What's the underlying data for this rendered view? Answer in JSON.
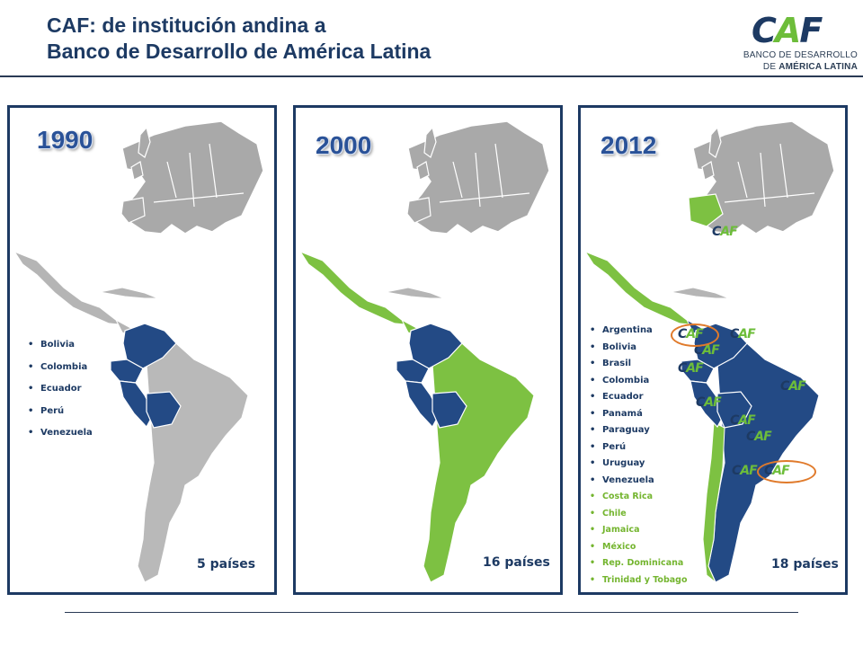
{
  "header": {
    "title_line1": "CAF: de institución andina a",
    "title_line2": "Banco de Desarrollo de América Latina"
  },
  "logo": {
    "mark_c": "C",
    "mark_a": "A",
    "mark_f": "F",
    "sub_line1": "BANCO DE DESARROLLO",
    "sub_line2_prefix": "DE ",
    "sub_line2_bold": "AMÉRICA LATINA"
  },
  "colors": {
    "navy": "#1d3a63",
    "member_blue": "#234a85",
    "green": "#7dc142",
    "gray": "#b9b9b9",
    "highlight_ring": "#e07a2b"
  },
  "panels": [
    {
      "year": "1990",
      "count_label": "5 países",
      "countries": [
        "Bolivia",
        "Colombia",
        "Ecuador",
        "Perú",
        "Venezuela"
      ]
    },
    {
      "year": "2000",
      "count_label": "16 países"
    },
    {
      "year": "2012",
      "count_label": "18 países",
      "countries_full": [
        "Argentina",
        "Bolivia",
        "Brasil",
        "Colombia",
        "Ecuador",
        "Panamá",
        "Paraguay",
        "Perú",
        "Uruguay",
        "Venezuela"
      ],
      "countries_associate": [
        "Costa Rica",
        "Chile",
        "Jamaica",
        "México",
        "Rep. Dominicana",
        "Trinidad  y Tobago"
      ],
      "badge_text_c": "C",
      "badge_text_af": "AF"
    }
  ]
}
